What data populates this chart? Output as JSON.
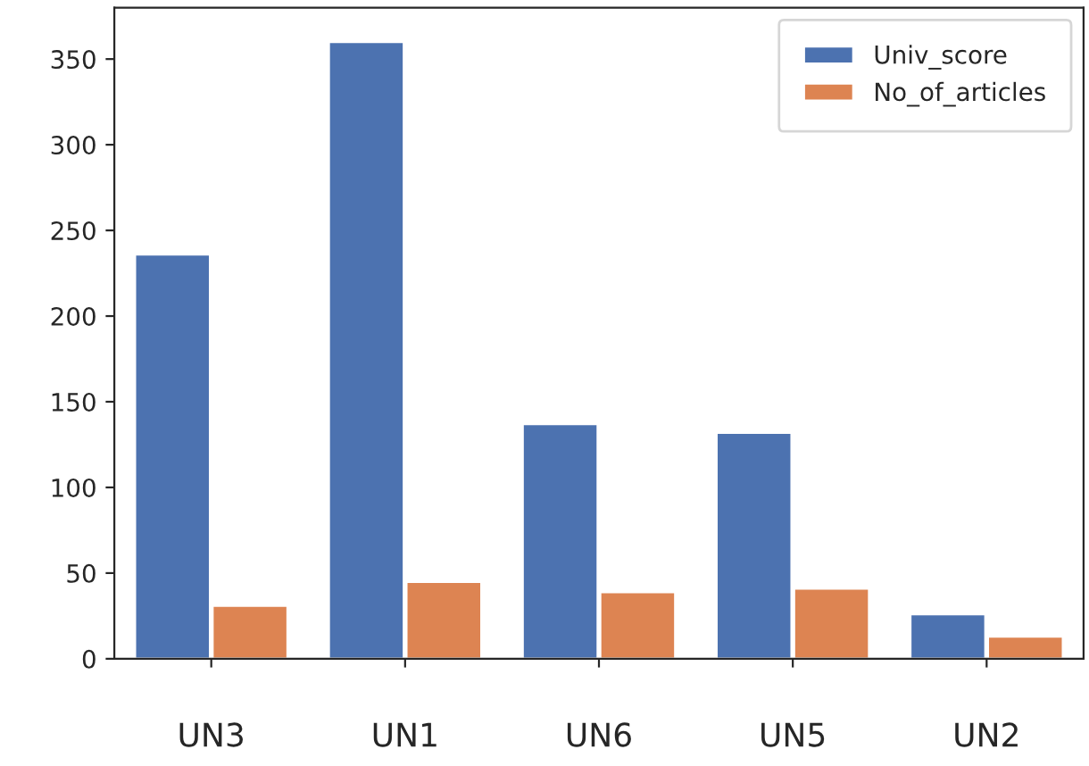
{
  "chart_data": {
    "type": "bar",
    "categories": [
      "UN3",
      "UN1",
      "UN6",
      "UN5",
      "UN2"
    ],
    "series": [
      {
        "name": "Univ_score",
        "color": "#4c72b0",
        "values": [
          236,
          360,
          137,
          132,
          26
        ]
      },
      {
        "name": "No_of_articles",
        "color": "#dd8452",
        "values": [
          31,
          45,
          39,
          41,
          13
        ]
      }
    ],
    "ylim": [
      0,
      380
    ],
    "yticks": [
      0,
      50,
      100,
      150,
      200,
      250,
      300,
      350
    ],
    "grid": false,
    "legend": "top right"
  }
}
